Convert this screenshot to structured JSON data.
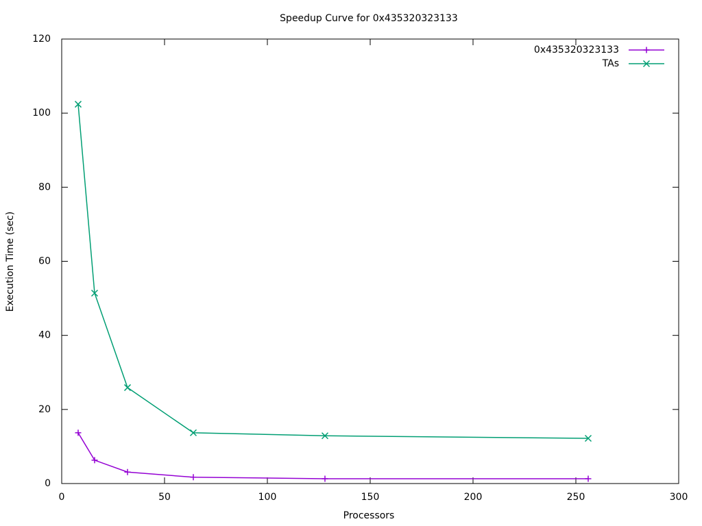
{
  "chart_data": {
    "type": "line",
    "title": "Speedup Curve for 0x435320323133",
    "x_label": "Processors",
    "y_label": "Execution Time (sec)",
    "x": [
      8,
      16,
      32,
      64,
      128,
      256
    ],
    "series": [
      {
        "name": "0x435320323133",
        "color": "#9400d3",
        "marker": "plus",
        "values": [
          13.7,
          6.3,
          3.1,
          1.7,
          1.3,
          1.3
        ]
      },
      {
        "name": "TAs",
        "color": "#009e73",
        "marker": "cross",
        "values": [
          102.4,
          51.4,
          25.9,
          13.7,
          12.9,
          12.2
        ]
      }
    ],
    "xlim": [
      0,
      300
    ],
    "xticks": [
      0,
      50,
      100,
      150,
      200,
      250,
      300
    ],
    "ylim": [
      0,
      120
    ],
    "yticks": [
      0,
      20,
      40,
      60,
      80,
      100,
      120
    ],
    "grid": false,
    "legend": "top-right"
  }
}
